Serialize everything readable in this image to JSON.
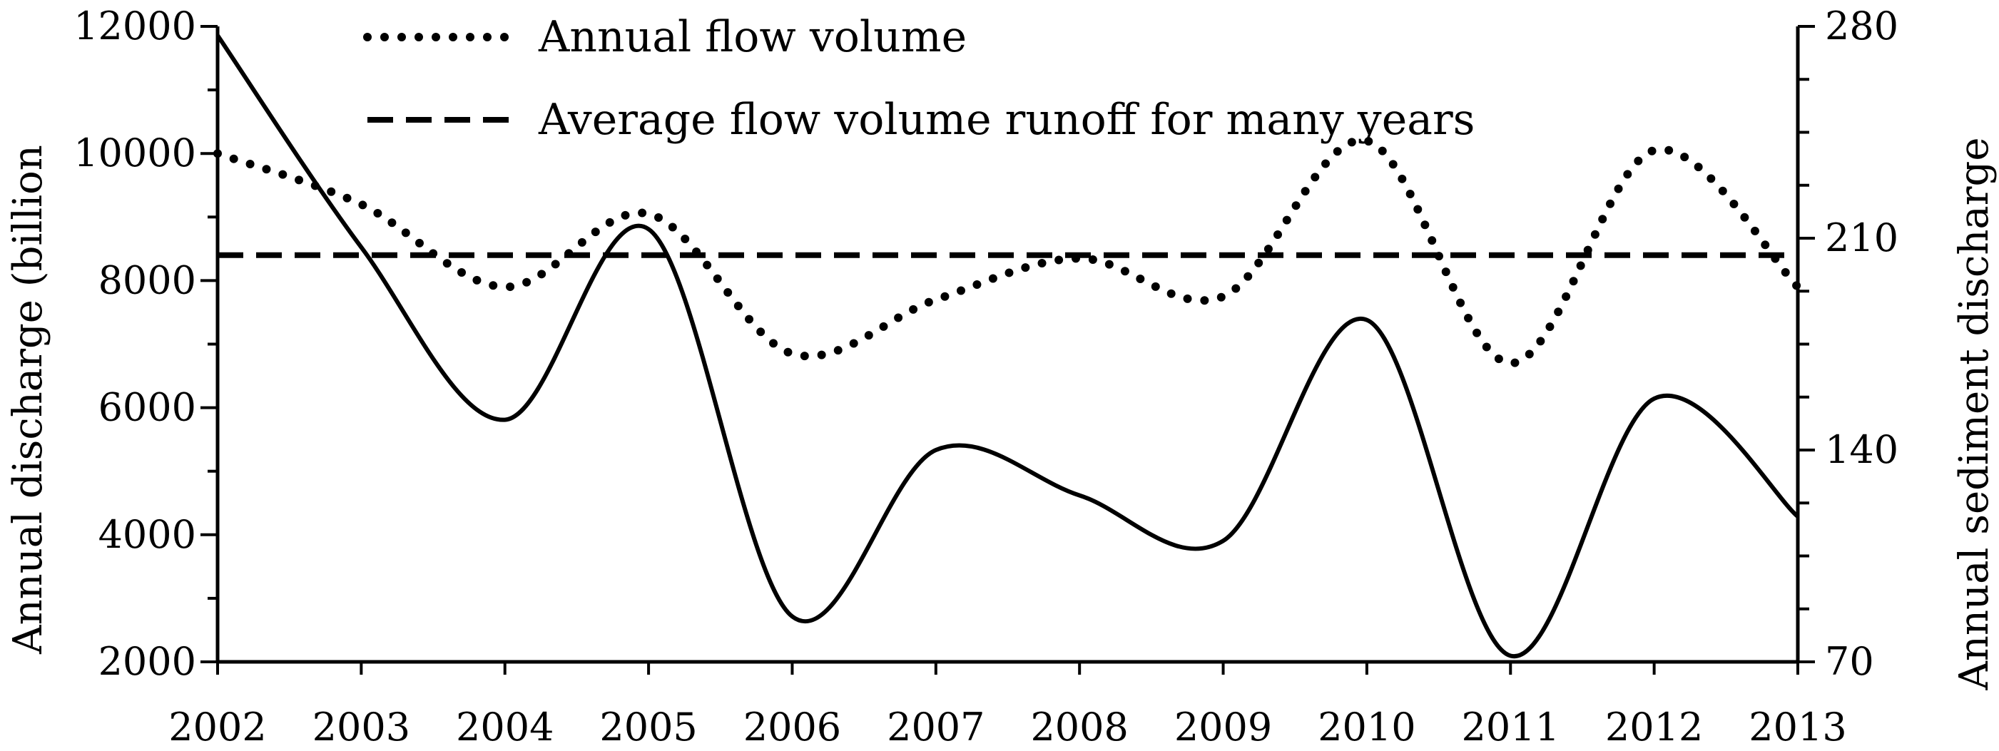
{
  "chart_data": {
    "type": "line",
    "x": [
      "2002",
      "2003",
      "2004",
      "2005",
      "2006",
      "2007",
      "2008",
      "2009",
      "2010",
      "2011",
      "2012",
      "2013"
    ],
    "y_left_label": "Annual discharge (billion",
    "y_right_label": "Annual sediment discharge",
    "y_left_ticks": [
      "2000",
      "4000",
      "6000",
      "8000",
      "10000",
      "12000"
    ],
    "y_left_range": [
      2000,
      12000
    ],
    "y_right_ticks": [
      "70",
      "140",
      "210",
      "280"
    ],
    "y_right_range": [
      70,
      280
    ],
    "grid": false,
    "legend_position": "top",
    "series": [
      {
        "name": "Annual flow volume",
        "axis": "left",
        "style": "dotted",
        "values": [
          10000,
          9200,
          7900,
          9050,
          6850,
          7700,
          8350,
          7750,
          10200,
          6700,
          10050,
          7900
        ]
      },
      {
        "name": "Average flow volume runoff for many years",
        "axis": "left",
        "style": "dashed",
        "values": [
          8400,
          8400,
          8400,
          8400,
          8400,
          8400,
          8400,
          8400,
          8400,
          8400,
          8400,
          8400
        ]
      },
      {
        "name": "",
        "axis": "right",
        "style": "solid",
        "values": [
          277,
          207,
          150,
          213,
          85,
          140,
          125,
          110,
          183,
          72,
          157,
          118
        ]
      }
    ]
  }
}
